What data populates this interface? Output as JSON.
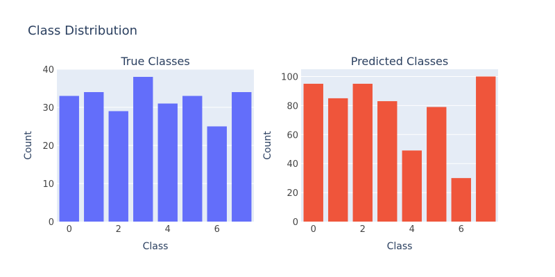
{
  "figure": {
    "title": "Class Distribution",
    "plot_bg": "#e5ecf6",
    "grid_color": "#ffffff"
  },
  "chart_data": [
    {
      "type": "bar",
      "title": "True Classes",
      "xlabel": "Class",
      "ylabel": "Count",
      "categories": [
        0,
        1,
        2,
        3,
        4,
        5,
        6,
        7
      ],
      "values": [
        33,
        34,
        29,
        38,
        31,
        33,
        25,
        34
      ],
      "xticks": [
        0,
        2,
        4,
        6
      ],
      "yticks": [
        0,
        10,
        20,
        30,
        40
      ],
      "ylim": [
        0,
        40
      ],
      "color": "#636efa",
      "grid": true
    },
    {
      "type": "bar",
      "title": "Predicted Classes",
      "xlabel": "Class",
      "ylabel": "Count",
      "categories": [
        0,
        1,
        2,
        3,
        4,
        5,
        6,
        7
      ],
      "values": [
        95,
        85,
        95,
        83,
        49,
        79,
        30,
        100
      ],
      "xticks": [
        0,
        2,
        4,
        6
      ],
      "yticks": [
        0,
        20,
        40,
        60,
        80,
        100
      ],
      "ylim": [
        0,
        105
      ],
      "color": "#ef553b",
      "grid": true
    }
  ]
}
